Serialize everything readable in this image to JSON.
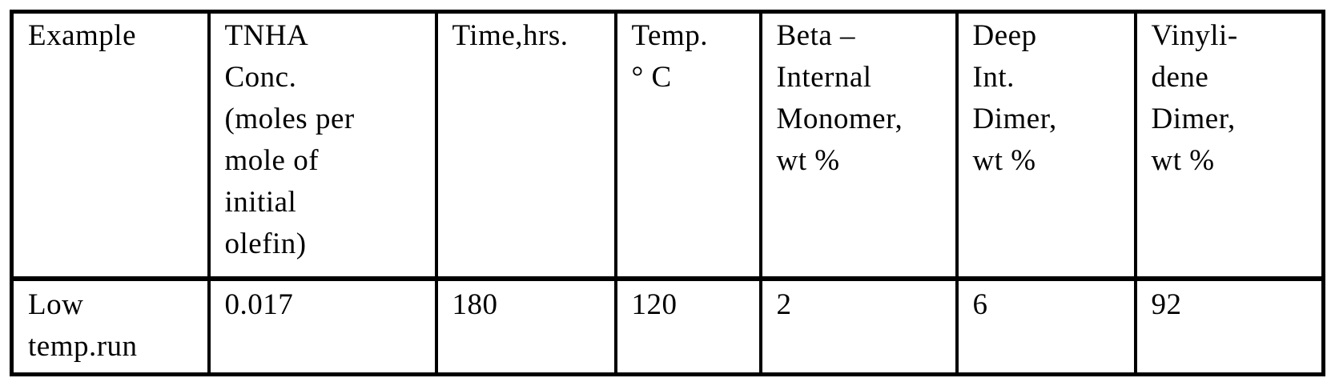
{
  "colors": {
    "ink": "#000000",
    "paper": "#ffffff"
  },
  "table": {
    "columns": [
      {
        "header": "Example"
      },
      {
        "header": "TNHA\nConc.\n(moles per\nmole of\ninitial\nolefin)"
      },
      {
        "header": "Time,hrs."
      },
      {
        "header": "Temp.\n° C"
      },
      {
        "header": "Beta –\nInternal\nMonomer,\nwt %"
      },
      {
        "header": "Deep\nInt.\nDimer,\nwt %"
      },
      {
        "header": "Vinyli-\ndene\nDimer,\nwt %"
      }
    ],
    "rows": [
      {
        "cells": [
          "Low\ntemp.run",
          "0.017",
          "180",
          "120",
          "2",
          "6",
          "92"
        ]
      }
    ]
  }
}
